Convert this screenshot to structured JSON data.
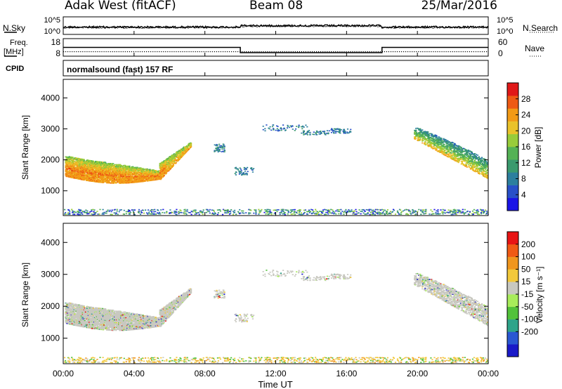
{
  "header": {
    "left": "Adak West (fitACF)",
    "center": "Beam 08",
    "right": "25/Mar/2016"
  },
  "chart_data": [
    {
      "type": "line",
      "panel": "noise",
      "left_label": "N.Sky",
      "right_label": "N.Search",
      "yticks_left": [
        "10^5",
        "10^0"
      ],
      "yticks_right": [
        "10^5",
        "10^0"
      ],
      "scale": "log"
    },
    {
      "type": "line",
      "panel": "frequency",
      "left_label_top": "Freq.",
      "left_label_bottom": "[MHz]",
      "right_label": "Nave",
      "ylim_left": [
        8,
        18
      ],
      "yticks_left": [
        "18",
        "8"
      ],
      "ylim_right": [
        0,
        60
      ],
      "yticks_right": [
        "60",
        "0"
      ],
      "freq_steps": [
        {
          "start": "00:00",
          "end": "10:00",
          "value": 13
        },
        {
          "start": "10:00",
          "end": "18:00",
          "value": 10
        },
        {
          "start": "18:00",
          "end": "24:00",
          "value": 13
        }
      ]
    },
    {
      "type": "table",
      "panel": "cpid",
      "label": "CPID",
      "text": "normalsound (fast) 157 RF"
    },
    {
      "type": "heatmap",
      "panel": "power",
      "ylabel": "Slant Range [km]",
      "xlabel": "Time UT",
      "ylim": [
        200,
        4600
      ],
      "yticks": [
        "1000",
        "2000",
        "3000",
        "4000"
      ],
      "x": [
        "00:00",
        "04:00",
        "08:00",
        "12:00",
        "16:00",
        "20:00",
        "00:00"
      ],
      "colorbar_label": "Power [dB]",
      "colorbar_ticks": [
        "28",
        "24",
        "20",
        "16",
        "12",
        "8",
        "4"
      ],
      "colorbar_range": [
        0,
        32
      ],
      "colors": [
        "#1a14e6",
        "#2850c8",
        "#2c7f9e",
        "#3a9a6e",
        "#54b255",
        "#98cc3a",
        "#eac22a",
        "#f29a16",
        "#ee5a14",
        "#e01818"
      ]
    },
    {
      "type": "heatmap",
      "panel": "velocity",
      "ylabel": "Slant Range [km]",
      "xlabel": "Time UT",
      "ylim": [
        200,
        4600
      ],
      "yticks": [
        "1000",
        "2000",
        "3000",
        "4000"
      ],
      "x": [
        "00:00",
        "04:00",
        "08:00",
        "12:00",
        "16:00",
        "20:00",
        "00:00"
      ],
      "colorbar_label": "Velocity [m s⁻¹]",
      "colorbar_ticks": [
        "200",
        "100",
        "50",
        "15",
        "-15",
        "-50",
        "-100",
        "-200"
      ],
      "colors": [
        "#1a1ac8",
        "#2a58d2",
        "#2ea48a",
        "#52c23a",
        "#a8ec5a",
        "#c8c8c0",
        "#f2c83a",
        "#f0961e",
        "#f05a14",
        "#e81414"
      ]
    }
  ]
}
